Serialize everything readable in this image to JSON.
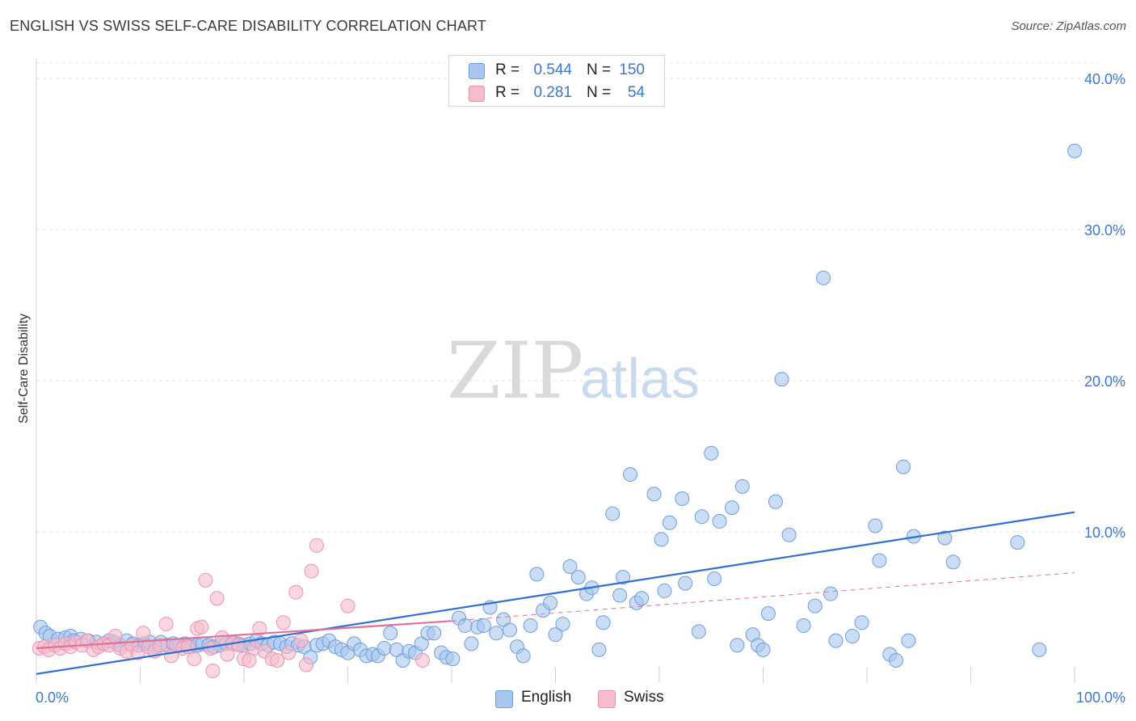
{
  "header": {
    "title": "ENGLISH VS SWISS SELF-CARE DISABILITY CORRELATION CHART",
    "source": "Source: ZipAtlas.com"
  },
  "watermark": {
    "zip": "ZIP",
    "atlas": "atlas"
  },
  "legend_top": {
    "english": {
      "r_label": "R =",
      "r_value": "0.544",
      "n_label": "N =",
      "n_value": "150"
    },
    "swiss": {
      "r_label": "R =",
      "r_value": "0.281",
      "n_label": "N =",
      "n_value": "54"
    }
  },
  "legend_bottom": {
    "english": "English",
    "swiss": "Swiss"
  },
  "colors": {
    "english_fill": "#a9c6ef",
    "english_stroke": "#6d9de0",
    "english_line": "#2f6fd1",
    "swiss_fill": "#f7bccb",
    "swiss_stroke": "#eb93aa",
    "swiss_line": "#e0709a",
    "tick_label": "#3a78d4",
    "grid": "#e3e3e3"
  },
  "chart_data": {
    "type": "scatter",
    "title": "ENGLISH VS SWISS SELF-CARE DISABILITY CORRELATION CHART",
    "xlabel": "",
    "ylabel": "Self-Care Disability",
    "xlim": [
      0,
      100
    ],
    "ylim": [
      0,
      42
    ],
    "x_tick_labels": {
      "min": "0.0%",
      "max": "100.0%"
    },
    "y_ticks": [
      10,
      20,
      30,
      40
    ],
    "y_tick_labels": [
      "10.0%",
      "20.0%",
      "30.0%",
      "40.0%"
    ],
    "grid": true,
    "legend": "top-center",
    "series": [
      {
        "name": "English",
        "trend": {
          "x": [
            0,
            100
          ],
          "y": [
            0.6,
            11.3
          ]
        },
        "points": [
          [
            0.4,
            3.7
          ],
          [
            0.9,
            3.3
          ],
          [
            1.3,
            3.1
          ],
          [
            2.1,
            2.9
          ],
          [
            2.8,
            3.0
          ],
          [
            3.3,
            3.1
          ],
          [
            3.6,
            2.8
          ],
          [
            4.3,
            2.9
          ],
          [
            5.0,
            2.8
          ],
          [
            5.8,
            2.7
          ],
          [
            6.5,
            2.6
          ],
          [
            7.0,
            2.8
          ],
          [
            7.5,
            2.7
          ],
          [
            8.1,
            2.5
          ],
          [
            8.7,
            2.8
          ],
          [
            9.3,
            2.6
          ],
          [
            9.9,
            2.5
          ],
          [
            10.4,
            2.6
          ],
          [
            10.9,
            2.7
          ],
          [
            11.5,
            2.4
          ],
          [
            12.0,
            2.7
          ],
          [
            12.6,
            2.5
          ],
          [
            13.2,
            2.6
          ],
          [
            13.8,
            2.5
          ],
          [
            14.3,
            2.6
          ],
          [
            14.9,
            2.4
          ],
          [
            15.5,
            2.5
          ],
          [
            16.0,
            2.6
          ],
          [
            16.6,
            2.5
          ],
          [
            17.1,
            2.4
          ],
          [
            17.7,
            2.5
          ],
          [
            18.3,
            2.6
          ],
          [
            18.9,
            2.7
          ],
          [
            19.4,
            2.6
          ],
          [
            20.0,
            2.5
          ],
          [
            20.6,
            2.6
          ],
          [
            21.2,
            2.8
          ],
          [
            21.7,
            2.6
          ],
          [
            22.3,
            2.5
          ],
          [
            22.9,
            2.7
          ],
          [
            23.5,
            2.6
          ],
          [
            24.1,
            2.4
          ],
          [
            24.6,
            2.6
          ],
          [
            25.2,
            2.5
          ],
          [
            25.8,
            2.4
          ],
          [
            26.4,
            1.7
          ],
          [
            27.0,
            2.5
          ],
          [
            27.6,
            2.6
          ],
          [
            28.2,
            2.8
          ],
          [
            28.8,
            2.4
          ],
          [
            29.4,
            2.2
          ],
          [
            30.0,
            2.0
          ],
          [
            30.6,
            2.6
          ],
          [
            31.2,
            2.2
          ],
          [
            31.8,
            1.8
          ],
          [
            32.4,
            1.9
          ],
          [
            32.9,
            1.8
          ],
          [
            33.5,
            2.3
          ],
          [
            34.1,
            3.3
          ],
          [
            34.7,
            2.2
          ],
          [
            35.3,
            1.5
          ],
          [
            35.9,
            2.1
          ],
          [
            36.5,
            2.0
          ],
          [
            37.1,
            2.6
          ],
          [
            37.7,
            3.3
          ],
          [
            38.3,
            3.3
          ],
          [
            39.0,
            2.0
          ],
          [
            39.5,
            1.7
          ],
          [
            40.1,
            1.6
          ],
          [
            40.7,
            4.3
          ],
          [
            41.3,
            3.8
          ],
          [
            41.9,
            2.6
          ],
          [
            42.5,
            3.7
          ],
          [
            43.1,
            3.8
          ],
          [
            43.7,
            5.0
          ],
          [
            44.3,
            3.3
          ],
          [
            45.0,
            4.2
          ],
          [
            45.6,
            3.5
          ],
          [
            46.3,
            2.4
          ],
          [
            46.9,
            1.8
          ],
          [
            47.6,
            3.8
          ],
          [
            48.2,
            7.2
          ],
          [
            48.8,
            4.8
          ],
          [
            49.5,
            5.3
          ],
          [
            50.0,
            3.2
          ],
          [
            50.7,
            3.9
          ],
          [
            51.4,
            7.7
          ],
          [
            52.2,
            7.0
          ],
          [
            53.0,
            5.9
          ],
          [
            53.5,
            6.3
          ],
          [
            54.2,
            2.2
          ],
          [
            54.6,
            4.0
          ],
          [
            55.5,
            11.2
          ],
          [
            56.2,
            5.8
          ],
          [
            56.5,
            7.0
          ],
          [
            57.2,
            13.8
          ],
          [
            57.8,
            5.3
          ],
          [
            58.3,
            5.6
          ],
          [
            59.5,
            12.5
          ],
          [
            60.2,
            9.5
          ],
          [
            60.5,
            6.1
          ],
          [
            61.0,
            10.6
          ],
          [
            62.2,
            12.2
          ],
          [
            62.5,
            6.6
          ],
          [
            63.8,
            3.4
          ],
          [
            64.1,
            11.0
          ],
          [
            65.0,
            15.2
          ],
          [
            65.3,
            6.9
          ],
          [
            65.8,
            10.7
          ],
          [
            67.0,
            11.6
          ],
          [
            67.5,
            2.5
          ],
          [
            68.0,
            13.0
          ],
          [
            69.0,
            3.2
          ],
          [
            69.5,
            2.5
          ],
          [
            70.0,
            2.2
          ],
          [
            70.5,
            4.6
          ],
          [
            71.2,
            12.0
          ],
          [
            71.8,
            20.1
          ],
          [
            72.5,
            9.8
          ],
          [
            73.9,
            3.8
          ],
          [
            75.0,
            5.1
          ],
          [
            75.8,
            26.8
          ],
          [
            76.5,
            5.9
          ],
          [
            77.0,
            2.8
          ],
          [
            78.6,
            3.1
          ],
          [
            79.5,
            4.0
          ],
          [
            80.8,
            10.4
          ],
          [
            81.2,
            8.1
          ],
          [
            82.2,
            1.9
          ],
          [
            82.8,
            1.5
          ],
          [
            83.5,
            14.3
          ],
          [
            84.0,
            2.8
          ],
          [
            84.5,
            9.7
          ],
          [
            87.5,
            9.6
          ],
          [
            88.3,
            8.0
          ],
          [
            94.5,
            9.3
          ],
          [
            96.6,
            2.2
          ],
          [
            100.0,
            35.2
          ]
        ]
      },
      {
        "name": "Swiss",
        "trend": {
          "x": [
            0,
            40
          ],
          "y": [
            2.3,
            4.1
          ]
        },
        "extrapolation": {
          "x": [
            40,
            100
          ],
          "y": [
            4.1,
            7.3
          ]
        },
        "points": [
          [
            0.3,
            2.3
          ],
          [
            0.8,
            2.4
          ],
          [
            1.2,
            2.2
          ],
          [
            1.8,
            2.5
          ],
          [
            2.3,
            2.3
          ],
          [
            2.8,
            2.6
          ],
          [
            3.3,
            2.4
          ],
          [
            3.8,
            2.7
          ],
          [
            4.4,
            2.5
          ],
          [
            4.9,
            2.8
          ],
          [
            5.5,
            2.2
          ],
          [
            6.0,
            2.4
          ],
          [
            6.5,
            2.6
          ],
          [
            7.0,
            2.5
          ],
          [
            7.6,
            3.1
          ],
          [
            8.1,
            2.3
          ],
          [
            8.7,
            2.1
          ],
          [
            9.2,
            2.5
          ],
          [
            9.8,
            2.0
          ],
          [
            10.3,
            3.3
          ],
          [
            10.8,
            2.4
          ],
          [
            11.4,
            2.1
          ],
          [
            11.9,
            2.5
          ],
          [
            12.5,
            3.9
          ],
          [
            13.0,
            1.8
          ],
          [
            13.5,
            2.5
          ],
          [
            14.1,
            2.3
          ],
          [
            14.6,
            2.4
          ],
          [
            15.2,
            1.6
          ],
          [
            15.5,
            3.6
          ],
          [
            15.9,
            3.7
          ],
          [
            16.3,
            6.8
          ],
          [
            16.8,
            2.3
          ],
          [
            17.0,
            0.8
          ],
          [
            17.4,
            5.6
          ],
          [
            17.9,
            3.0
          ],
          [
            18.4,
            1.9
          ],
          [
            18.9,
            2.6
          ],
          [
            19.5,
            2.5
          ],
          [
            20.0,
            1.6
          ],
          [
            20.5,
            1.5
          ],
          [
            21.0,
            2.3
          ],
          [
            21.5,
            3.6
          ],
          [
            22.0,
            2.1
          ],
          [
            22.7,
            1.6
          ],
          [
            23.2,
            1.5
          ],
          [
            23.8,
            4.0
          ],
          [
            24.3,
            2.0
          ],
          [
            25.0,
            6.0
          ],
          [
            25.5,
            2.8
          ],
          [
            26.0,
            1.2
          ],
          [
            26.5,
            7.4
          ],
          [
            27.0,
            9.1
          ],
          [
            30.0,
            5.1
          ],
          [
            37.2,
            1.5
          ]
        ]
      }
    ]
  }
}
